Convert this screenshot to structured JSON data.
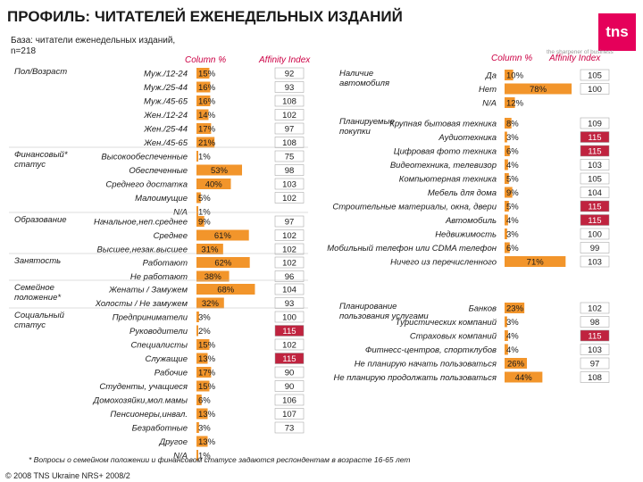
{
  "title": "ПРОФИЛЬ: ЧИТАТЕЛЕЙ ЕЖЕНЕДЕЛЬНЫХ ИЗДАНИЙ",
  "base_line1": "База: читатели еженедельных изданий,",
  "base_line2": "n=218",
  "logo_text": "tns",
  "tagline": "the sharpener of business",
  "footnote": "* Вопросы о семейном положении и финансовом статусе задаются респондентам в возрасте 16-65 лет",
  "copyright": "© 2008 TNS Ukraine  NRS+ 2008/2",
  "colors": {
    "bar": "#f2952b",
    "box": "#c0233f",
    "accent": "#cc0044",
    "logo": "#e5005a"
  },
  "chart_data": [
    {
      "type": "bar",
      "column_header": "Column %",
      "affinity_header": "Affinity Index",
      "groups": [
        {
          "name": "Пол/Возраст",
          "rows": [
            {
              "label": "Муж./12-24",
              "percent": 15,
              "affinity": 92
            },
            {
              "label": "Муж./25-44",
              "percent": 16,
              "affinity": 93
            },
            {
              "label": "Муж./45-65",
              "percent": 16,
              "affinity": 108
            },
            {
              "label": "Жен./12-24",
              "percent": 14,
              "affinity": 102
            },
            {
              "label": "Жен./25-44",
              "percent": 17,
              "affinity": 97
            },
            {
              "label": "Жен./45-65",
              "percent": 21,
              "affinity": 108
            }
          ]
        },
        {
          "name": "Финансовый* статус",
          "rows": [
            {
              "label": "Высокообеспеченные",
              "percent": 1,
              "affinity": 75
            },
            {
              "label": "Обеспеченные",
              "percent": 53,
              "affinity": 98
            },
            {
              "label": "Среднего достатка",
              "percent": 40,
              "affinity": 103
            },
            {
              "label": "Малоимущие",
              "percent": 5,
              "affinity": 102
            },
            {
              "label": "N/A",
              "percent": 1,
              "affinity": null
            }
          ]
        },
        {
          "name": "Образование",
          "rows": [
            {
              "label": "Начальное,неп.среднее",
              "percent": 9,
              "affinity": 97
            },
            {
              "label": "Среднее",
              "percent": 61,
              "affinity": 102
            },
            {
              "label": "Высшее,незак.высшее",
              "percent": 31,
              "affinity": 102
            }
          ]
        },
        {
          "name": "Занятость",
          "rows": [
            {
              "label": "Работают",
              "percent": 62,
              "affinity": 102
            },
            {
              "label": "Не работают",
              "percent": 38,
              "affinity": 96
            }
          ]
        },
        {
          "name": "Семейное положение*",
          "rows": [
            {
              "label": "Женаты / Замужем",
              "percent": 68,
              "affinity": 104
            },
            {
              "label": "Холосты / Не замужем",
              "percent": 32,
              "affinity": 93
            }
          ]
        },
        {
          "name": "Социальный статус",
          "rows": [
            {
              "label": "Предприниматели",
              "percent": 3,
              "affinity": 100
            },
            {
              "label": "Руководители",
              "percent": 2,
              "affinity": 115
            },
            {
              "label": "Специалисты",
              "percent": 15,
              "affinity": 102
            },
            {
              "label": "Служащие",
              "percent": 13,
              "affinity": 115
            },
            {
              "label": "Рабочие",
              "percent": 17,
              "affinity": 90
            },
            {
              "label": "Студенты, учащиеся",
              "percent": 15,
              "affinity": 90
            },
            {
              "label": "Домохозяйки,мол.мамы",
              "percent": 6,
              "affinity": 106
            },
            {
              "label": "Пенсионеры,инвал.",
              "percent": 13,
              "affinity": 107
            },
            {
              "label": "Безработные",
              "percent": 3,
              "affinity": 73
            },
            {
              "label": "Другое",
              "percent": 13,
              "affinity": null
            },
            {
              "label": "N/A",
              "percent": 1,
              "affinity": null
            }
          ]
        }
      ]
    },
    {
      "type": "bar",
      "column_header": "Column %",
      "affinity_header": "Affinity Index",
      "groups": [
        {
          "name": "Наличие автомобиля",
          "rows": [
            {
              "label": "Да",
              "percent": 10,
              "affinity": 105
            },
            {
              "label": "Нет",
              "percent": 78,
              "affinity": 100
            },
            {
              "label": "N/A",
              "percent": 12,
              "affinity": null
            }
          ]
        },
        {
          "name": "Планируемые покупки",
          "rows": [
            {
              "label": "Крупная бытовая техника",
              "percent": 8,
              "affinity": 109
            },
            {
              "label": "Аудиотехника",
              "percent": 3,
              "affinity": 115
            },
            {
              "label": "Цифровая фото техника",
              "percent": 6,
              "affinity": 115
            },
            {
              "label": "Видеотехника, телевизор",
              "percent": 4,
              "affinity": 103
            },
            {
              "label": "Компьютерная техника",
              "percent": 5,
              "affinity": 105
            },
            {
              "label": "Мебель для дома",
              "percent": 9,
              "affinity": 104
            },
            {
              "label": "Строительные материалы, окна, двери",
              "percent": 5,
              "affinity": 115
            },
            {
              "label": "Автомобиль",
              "percent": 4,
              "affinity": 115
            },
            {
              "label": "Недвижимость",
              "percent": 3,
              "affinity": 100
            },
            {
              "label": "Мобильный телефон или CDMA телефон",
              "percent": 6,
              "affinity": 99
            },
            {
              "label": "Ничего из перечисленного",
              "percent": 71,
              "affinity": 103
            }
          ]
        },
        {
          "name": "Планирование пользования услугами",
          "rows": [
            {
              "label": "Банков",
              "percent": 23,
              "affinity": 102
            },
            {
              "label": "Туристических компаний",
              "percent": 3,
              "affinity": 98
            },
            {
              "label": "Страховых компаний",
              "percent": 4,
              "affinity": 115
            },
            {
              "label": "Фитнесс-центров, спортклубов",
              "percent": 4,
              "affinity": 103
            },
            {
              "label": "Не планирую начать пользоваться",
              "percent": 26,
              "affinity": 97
            },
            {
              "label": "Не планирую продолжать пользоваться",
              "percent": 44,
              "affinity": 108
            }
          ]
        }
      ]
    }
  ]
}
